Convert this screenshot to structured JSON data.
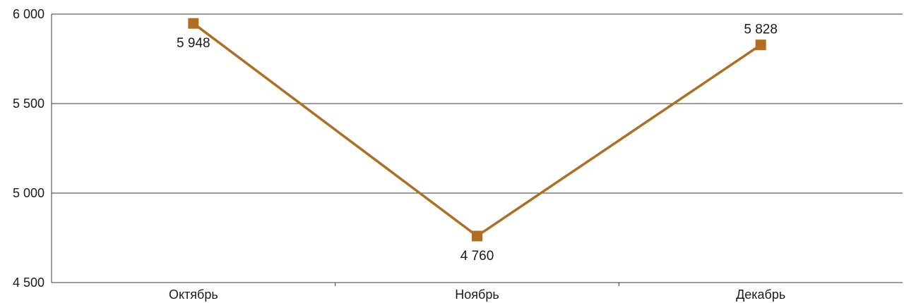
{
  "chart_data": {
    "type": "line",
    "categories": [
      "Октябрь",
      "Ноябрь",
      "Декабрь"
    ],
    "series": [
      {
        "values": [
          5948,
          4760,
          5828
        ],
        "data_labels": [
          "5 948",
          "4 760",
          "5 828"
        ],
        "color": "#b06e25"
      }
    ],
    "y_ticks": [
      4500,
      5000,
      5500,
      6000
    ],
    "y_tick_labels": [
      "4 500",
      "5 000",
      "5 500",
      "6 000"
    ],
    "ylim": [
      4500,
      6000
    ],
    "grid": true,
    "legend": "none",
    "title": "",
    "xlabel": "",
    "ylabel": ""
  }
}
